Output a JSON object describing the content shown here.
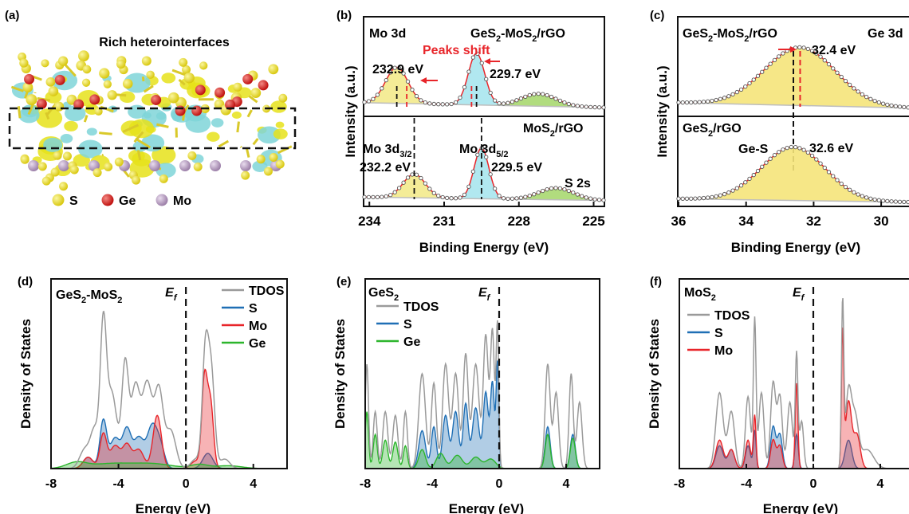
{
  "panel_a": {
    "label": "(a)",
    "title": "Rich heterointerfaces",
    "legend": [
      {
        "label": "S",
        "color": "#e4d713"
      },
      {
        "label": "Ge",
        "color": "#d8201e"
      },
      {
        "label": "Mo",
        "color": "#b79bc0"
      }
    ],
    "colors": {
      "isosurface_yellow": "#e6e21a",
      "isosurface_cyan": "#7fd5d8",
      "bond": "#d9c92a"
    }
  },
  "panel_b": {
    "label": "(b)",
    "ylabel": "Intensity (a.u.)",
    "xlabel": "Binding Energy (eV)",
    "xticks": [
      "234",
      "231",
      "228",
      "225"
    ],
    "top": {
      "sample": "GeS",
      "sample_sub": "2",
      "sample_rest": "-MoS",
      "sample_sub2": "2",
      "sample_end": "/rGO",
      "region": "Mo 3d",
      "shift_label": "Peaks shift",
      "peak1": "232.9 eV",
      "peak2": "229.7 eV"
    },
    "bottom": {
      "sample": "MoS",
      "sample_sub": "2",
      "sample_end": "/rGO",
      "d32_main": "Mo  3d",
      "d32_sub": "3/2",
      "d52_main": "Mo  3d",
      "d52_sub": "5/2",
      "peak1": "232.2 eV",
      "peak2": "229.5 eV",
      "s2s": "S 2s"
    }
  },
  "panel_c": {
    "label": "(c)",
    "ylabel": "Intensity (a.u.)",
    "xlabel": "Binding Energy (eV)",
    "xticks": [
      "36",
      "34",
      "32",
      "30"
    ],
    "top": {
      "sample": "GeS",
      "sample_sub": "2",
      "sample_rest": "-MoS",
      "sample_sub2": "2",
      "sample_end": "/rGO",
      "region": "Ge 3d",
      "peak": "32.4 eV"
    },
    "bottom": {
      "sample": "GeS",
      "sample_sub": "2",
      "sample_end": "/rGO",
      "bond": "Ge-S",
      "peak": "32.6 eV"
    }
  },
  "chart_data": [
    {
      "type": "line",
      "panel": "(b) top",
      "x_unit": "Binding Energy (eV)",
      "xlim": [
        234.2,
        224.6
      ],
      "peaks": [
        {
          "position": 232.9,
          "label": "232.9 eV",
          "fill": "#f3ea8c"
        },
        {
          "position": 229.7,
          "label": "229.7 eV",
          "fill": "#a8e6ee"
        },
        {
          "position": 227.2,
          "label": "",
          "fill": "#a8d870"
        }
      ]
    },
    {
      "type": "line",
      "panel": "(b) bottom",
      "x_unit": "Binding Energy (eV)",
      "xlim": [
        234.2,
        224.6
      ],
      "peaks": [
        {
          "position": 232.2,
          "label": "232.2 eV",
          "fill": "#f3ea8c"
        },
        {
          "position": 229.5,
          "label": "229.5 eV",
          "fill": "#a8e6ee"
        },
        {
          "position": 226.5,
          "label": "S 2s",
          "fill": "#a8d870"
        }
      ]
    },
    {
      "type": "line",
      "panel": "(c) top",
      "xlim": [
        36,
        29.2
      ],
      "peaks": [
        {
          "position": 32.4,
          "label": "32.4 eV",
          "fill": "#f5e47a"
        }
      ]
    },
    {
      "type": "line",
      "panel": "(c) bottom",
      "xlim": [
        36,
        29.2
      ],
      "peaks": [
        {
          "position": 32.6,
          "label": "32.6 eV",
          "fill": "#f5e47a"
        }
      ]
    },
    {
      "type": "area",
      "panel": "(d)",
      "title": "GeS2-MoS2",
      "xlabel": "Energy (eV)",
      "ylabel": "Density of States",
      "xlim": [
        -8,
        6
      ],
      "xticks": [
        "-8",
        "-4",
        "0",
        "4"
      ],
      "fermi_label": "E",
      "fermi_sub": "f",
      "series": [
        {
          "name": "TDOS",
          "color": "#9a9a9a"
        },
        {
          "name": "S",
          "color": "#1f6fb5"
        },
        {
          "name": "Mo",
          "color": "#e8252a"
        },
        {
          "name": "Ge",
          "color": "#2cb52c"
        }
      ]
    },
    {
      "type": "area",
      "panel": "(e)",
      "title": "GeS2",
      "xlabel": "Energy (eV)",
      "ylabel": "Density of States",
      "xlim": [
        -8,
        6
      ],
      "xticks": [
        "-8",
        "-4",
        "0",
        "4"
      ],
      "fermi_label": "E",
      "fermi_sub": "f",
      "series": [
        {
          "name": "TDOS",
          "color": "#9a9a9a"
        },
        {
          "name": "S",
          "color": "#1f6fb5"
        },
        {
          "name": "Ge",
          "color": "#2cb52c"
        }
      ]
    },
    {
      "type": "area",
      "panel": "(f)",
      "title": "MoS2",
      "xlabel": "Energy (eV)",
      "ylabel": "Density of States",
      "xlim": [
        -8,
        6
      ],
      "xticks": [
        "-8",
        "-4",
        "0",
        "4"
      ],
      "fermi_label": "E",
      "fermi_sub": "f",
      "series": [
        {
          "name": "TDOS",
          "color": "#9a9a9a"
        },
        {
          "name": "S",
          "color": "#1f6fb5"
        },
        {
          "name": "Mo",
          "color": "#e8252a"
        }
      ]
    }
  ],
  "panel_labels": {
    "d": "(d)",
    "e": "(e)",
    "f": "(f)"
  },
  "titles": {
    "d_main": "GeS",
    "d_sub": "2",
    "d_rest": "-MoS",
    "d_sub2": "2",
    "e_main": "GeS",
    "e_sub": "2",
    "f_main": "MoS",
    "f_sub": "2"
  }
}
